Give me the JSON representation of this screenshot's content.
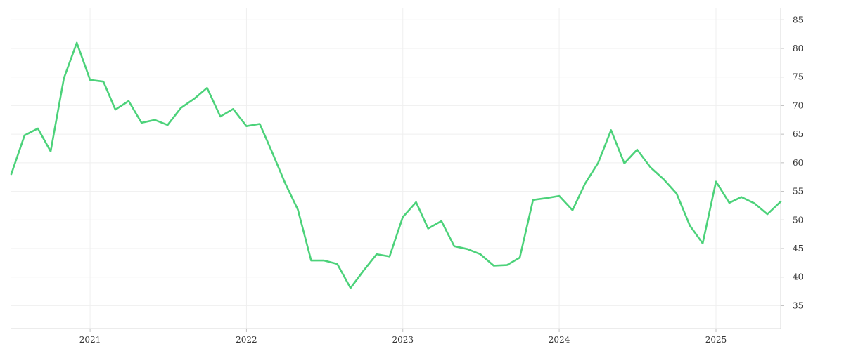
{
  "chart_data": {
    "type": "line",
    "title": "",
    "xlabel": "",
    "ylabel": "",
    "grid": true,
    "legend": "none",
    "y_axis_side": "right",
    "xlim": [
      "2020-07-01",
      "2025-06-01"
    ],
    "ylim": [
      31,
      87
    ],
    "x_ticks": [
      "2021",
      "2022",
      "2023",
      "2024",
      "2025"
    ],
    "x_tick_dates": [
      "2021-01-01",
      "2022-01-01",
      "2023-01-01",
      "2024-01-01",
      "2025-01-01"
    ],
    "y_ticks": [
      "35",
      "40",
      "45",
      "50",
      "55",
      "60",
      "65",
      "70",
      "75",
      "80",
      "85"
    ],
    "y_tick_values": [
      35,
      40,
      45,
      50,
      55,
      60,
      65,
      70,
      75,
      80,
      85
    ],
    "series": [
      {
        "color": "#4cd27a",
        "x": [
          "2020-07-01",
          "2020-08-01",
          "2020-09-01",
          "2020-10-01",
          "2020-11-01",
          "2020-12-01",
          "2021-01-01",
          "2021-02-01",
          "2021-03-01",
          "2021-04-01",
          "2021-05-01",
          "2021-06-01",
          "2021-07-01",
          "2021-08-01",
          "2021-09-01",
          "2021-10-01",
          "2021-11-01",
          "2021-12-01",
          "2022-01-01",
          "2022-02-01",
          "2022-03-01",
          "2022-04-01",
          "2022-05-01",
          "2022-06-01",
          "2022-07-01",
          "2022-08-01",
          "2022-09-01",
          "2022-10-01",
          "2022-11-01",
          "2022-12-01",
          "2023-01-01",
          "2023-02-01",
          "2023-03-01",
          "2023-04-01",
          "2023-05-01",
          "2023-06-01",
          "2023-07-01",
          "2023-08-01",
          "2023-09-01",
          "2023-10-01",
          "2023-11-01",
          "2023-12-01",
          "2024-01-01",
          "2024-02-01",
          "2024-03-01",
          "2024-04-01",
          "2024-05-01",
          "2024-06-01",
          "2024-07-01",
          "2024-08-01",
          "2024-09-01",
          "2024-10-01",
          "2024-11-01",
          "2024-12-01",
          "2025-01-01",
          "2025-02-01",
          "2025-03-01",
          "2025-04-01",
          "2025-05-01",
          "2025-06-01"
        ],
        "values": [
          58.0,
          64.8,
          66.0,
          62.0,
          74.8,
          81.0,
          74.5,
          74.2,
          69.3,
          70.8,
          67.0,
          67.5,
          66.6,
          69.6,
          71.2,
          73.1,
          68.1,
          69.4,
          66.4,
          66.8,
          62.0,
          56.5,
          51.8,
          42.9,
          42.9,
          42.3,
          38.1,
          41.1,
          44.0,
          43.6,
          50.5,
          53.1,
          48.5,
          49.8,
          45.4,
          44.9,
          44.0,
          42.0,
          42.1,
          43.4,
          53.5,
          53.8,
          54.2,
          51.7,
          56.3,
          60.0,
          65.7,
          59.9,
          62.3,
          59.2,
          57.1,
          54.6,
          49.0,
          45.9,
          56.7,
          53.0,
          54.0,
          52.9,
          51.0,
          53.2
        ]
      }
    ]
  }
}
